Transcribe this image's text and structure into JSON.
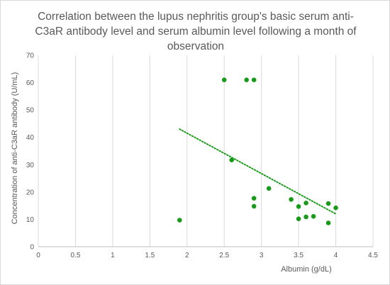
{
  "chart_data": {
    "type": "scatter",
    "title": "Correlation between the lupus nephritis group's basic serum anti-C3aR antibody level and serum albumin level following a month of observation",
    "xlabel": "Albumin (g/dL)",
    "ylabel": "Concentration of anti-C3aR antibody (U/mL)",
    "xlim": [
      0,
      4.5
    ],
    "ylim": [
      0,
      70
    ],
    "x_ticks": [
      "0",
      "0.5",
      "1",
      "1.5",
      "2",
      "2.5",
      "3",
      "3.5",
      "4",
      "4.5"
    ],
    "y_ticks": [
      "0",
      "10",
      "20",
      "30",
      "40",
      "50",
      "60",
      "70"
    ],
    "vertical_grid": true,
    "horizontal_grid": false,
    "marker_color": "#1a9a1a",
    "trendline": {
      "type": "linear",
      "style": "dotted",
      "color": "#1a9a1a",
      "x": [
        1.9,
        4.0
      ],
      "y": [
        43,
        12
      ]
    },
    "points": [
      {
        "x": 1.9,
        "y": 9.7
      },
      {
        "x": 2.5,
        "y": 61
      },
      {
        "x": 2.6,
        "y": 31.7
      },
      {
        "x": 2.8,
        "y": 61
      },
      {
        "x": 2.9,
        "y": 61
      },
      {
        "x": 2.9,
        "y": 17.7
      },
      {
        "x": 2.9,
        "y": 14.8
      },
      {
        "x": 3.1,
        "y": 21.3
      },
      {
        "x": 3.4,
        "y": 17.3
      },
      {
        "x": 3.5,
        "y": 14.7
      },
      {
        "x": 3.5,
        "y": 10.2
      },
      {
        "x": 3.6,
        "y": 16.0
      },
      {
        "x": 3.6,
        "y": 10.9
      },
      {
        "x": 3.7,
        "y": 11.1
      },
      {
        "x": 3.9,
        "y": 15.8
      },
      {
        "x": 3.9,
        "y": 8.7
      },
      {
        "x": 4.0,
        "y": 14.2
      }
    ]
  }
}
